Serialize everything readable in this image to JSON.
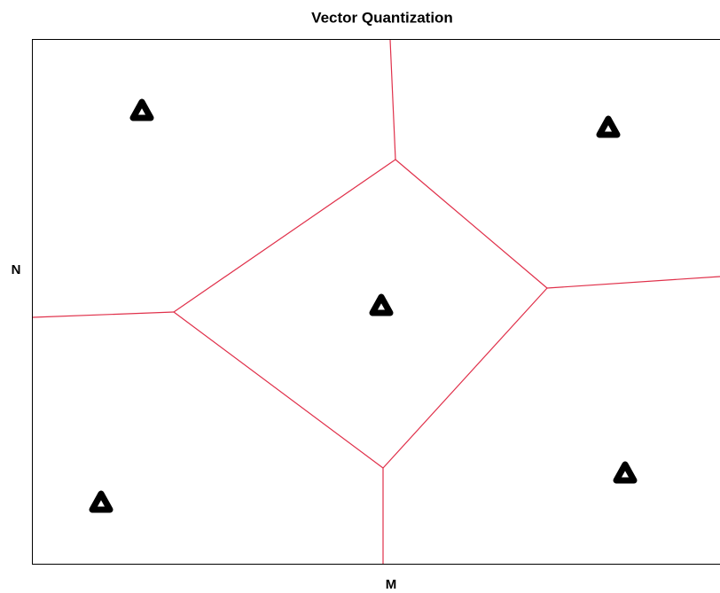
{
  "title": "Vector Quantization",
  "x_label": "M",
  "y_label": "N"
}
